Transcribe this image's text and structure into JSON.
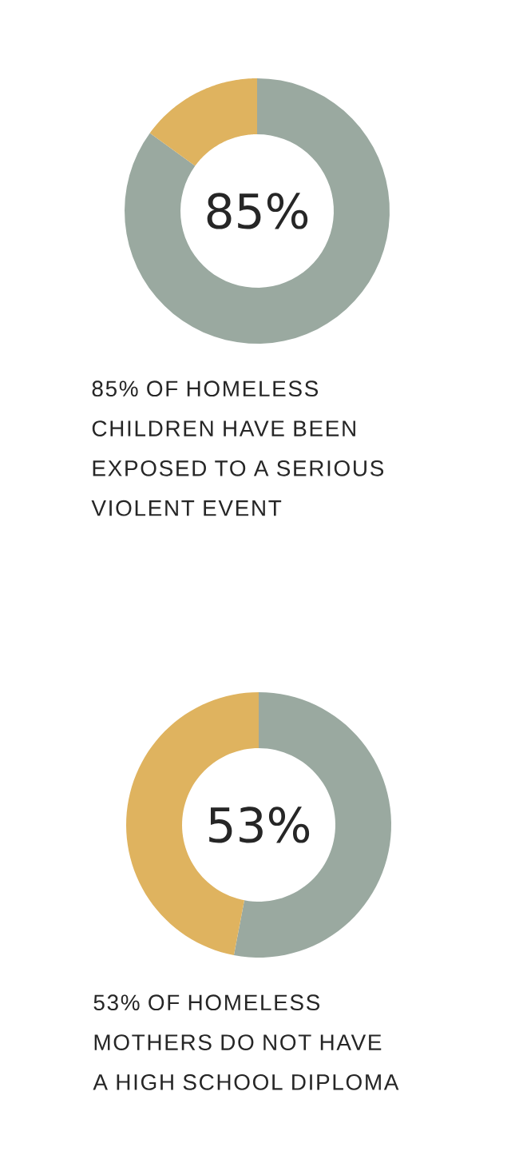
{
  "chart_data": [
    {
      "type": "donut",
      "categories": [
        null,
        null
      ],
      "values": [
        85,
        15
      ],
      "colors": [
        "#9aa9a0",
        "#dfb35f"
      ],
      "value_labels": [
        "85%",
        null
      ],
      "annotations": [
        "85% OF HOMELESS CHILDREN HAVE BEEN EXPOSED TO A SERIOUS VIOLENT EVENT"
      ]
    },
    {
      "type": "donut",
      "categories": [
        null,
        null
      ],
      "values": [
        53,
        47
      ],
      "colors": [
        "#9aa9a0",
        "#dfb35f"
      ],
      "value_labels": [
        "53%",
        null
      ],
      "annotations": [
        "53% OF HOMELESS MOTHERS DO NOT HAVE A HIGH SCHOOL DIPLOMA"
      ]
    }
  ]
}
